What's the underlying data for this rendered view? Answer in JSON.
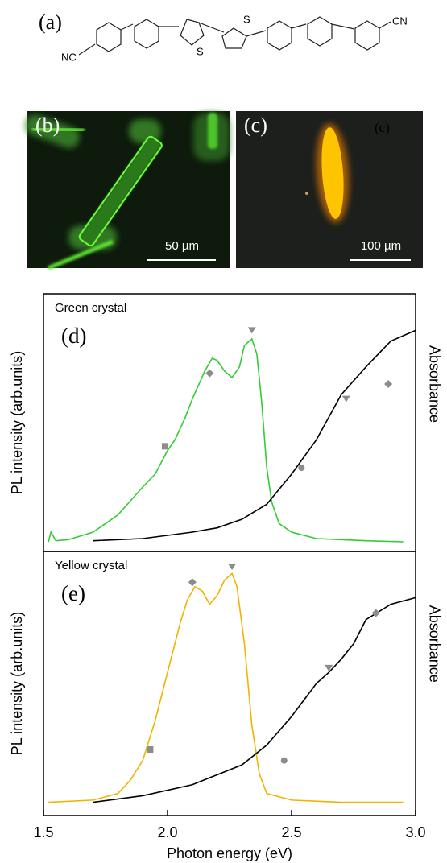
{
  "panel_a": {
    "label": "(a)",
    "left_group": "NC",
    "right_group": "CN",
    "sulfur_1": "S",
    "sulfur_2": "S"
  },
  "panel_b": {
    "label": "(b)",
    "scale_bar": "50 µm"
  },
  "panel_c": {
    "label": "(c)",
    "inset_label": "(c)",
    "scale_bar": "100 µm"
  },
  "chart_data": [
    {
      "type": "line",
      "annotation": "Green crystal",
      "panel_label": "(d)",
      "ylabel": "PL intensity (arb.units)",
      "y2label": "Absorbance",
      "xlim": [
        1.5,
        3.0
      ],
      "ylim": [
        0,
        1.2
      ],
      "y2lim": [
        0,
        1.2
      ],
      "series": [
        {
          "color": "#33cc33",
          "x": [
            1.52,
            1.53,
            1.55,
            1.6,
            1.7,
            1.8,
            1.9,
            1.95,
            2.0,
            2.03,
            2.07,
            2.1,
            2.15,
            2.18,
            2.2,
            2.23,
            2.26,
            2.29,
            2.31,
            2.34,
            2.36,
            2.38,
            2.4,
            2.42,
            2.45,
            2.5,
            2.6,
            2.7,
            2.8,
            2.95
          ],
          "values": [
            0.045,
            0.09,
            0.05,
            0.055,
            0.09,
            0.17,
            0.3,
            0.36,
            0.47,
            0.52,
            0.62,
            0.71,
            0.84,
            0.9,
            0.89,
            0.84,
            0.81,
            0.86,
            0.96,
            0.99,
            0.92,
            0.69,
            0.39,
            0.23,
            0.13,
            0.09,
            0.06,
            0.055,
            0.05,
            0.045
          ]
        },
        {
          "color": "#000000",
          "axis": "y2",
          "x": [
            1.7,
            1.9,
            2.1,
            2.2,
            2.3,
            2.4,
            2.5,
            2.6,
            2.7,
            2.8,
            2.9,
            3.0
          ],
          "values": [
            0.05,
            0.06,
            0.09,
            0.11,
            0.15,
            0.22,
            0.36,
            0.52,
            0.73,
            0.86,
            0.98,
            1.03
          ]
        }
      ],
      "markers": {
        "color": "#8c8c8c",
        "points": [
          {
            "shape": "square",
            "x": 1.99,
            "y": 0.49
          },
          {
            "shape": "diamond",
            "x": 2.17,
            "y": 0.83
          },
          {
            "shape": "triangle",
            "x": 2.34,
            "y": 1.03
          },
          {
            "shape": "circle",
            "x": 2.54,
            "y": 0.39
          },
          {
            "shape": "triangle",
            "x": 2.72,
            "y": 0.71
          },
          {
            "shape": "diamond",
            "x": 2.89,
            "y": 0.78
          }
        ]
      }
    },
    {
      "type": "line",
      "annotation": "Yellow crystal",
      "panel_label": "(e)",
      "ylabel": "PL intensity (arb.units)",
      "y2label": "Absorbance",
      "xlabel": "Photon energy (eV)",
      "xlim": [
        1.5,
        3.0
      ],
      "xticks": [
        1.5,
        {
          "value": 2.0,
          "label": "2.0"
        },
        2.5,
        {
          "value": 3.0,
          "label": "3.0"
        }
      ],
      "ylim": [
        0,
        1.2
      ],
      "y2lim": [
        0,
        1.2
      ],
      "series": [
        {
          "color": "#f0b400",
          "x": [
            1.52,
            1.7,
            1.8,
            1.85,
            1.9,
            1.95,
            2.0,
            2.05,
            2.08,
            2.11,
            2.14,
            2.17,
            2.2,
            2.23,
            2.26,
            2.28,
            2.31,
            2.34,
            2.37,
            2.4,
            2.5,
            2.7,
            2.95
          ],
          "values": [
            0.06,
            0.07,
            0.1,
            0.16,
            0.25,
            0.43,
            0.65,
            0.87,
            0.98,
            1.04,
            1.02,
            0.96,
            1.0,
            1.07,
            1.1,
            1.04,
            0.78,
            0.41,
            0.19,
            0.1,
            0.07,
            0.06,
            0.06
          ]
        },
        {
          "color": "#000000",
          "axis": "y2",
          "x": [
            1.7,
            1.9,
            2.1,
            2.3,
            2.4,
            2.5,
            2.6,
            2.65,
            2.7,
            2.75,
            2.8,
            2.9,
            3.0
          ],
          "values": [
            0.06,
            0.09,
            0.14,
            0.23,
            0.32,
            0.45,
            0.6,
            0.65,
            0.71,
            0.78,
            0.89,
            0.96,
            0.99
          ]
        }
      ],
      "markers": {
        "color": "#8c8c8c",
        "points": [
          {
            "shape": "square",
            "x": 1.93,
            "y": 0.3
          },
          {
            "shape": "diamond",
            "x": 2.1,
            "y": 1.06
          },
          {
            "shape": "triangle",
            "x": 2.26,
            "y": 1.13
          },
          {
            "shape": "circle",
            "x": 2.47,
            "y": 0.25
          },
          {
            "shape": "triangle",
            "x": 2.65,
            "y": 0.67
          },
          {
            "shape": "diamond",
            "x": 2.84,
            "y": 0.92
          }
        ]
      }
    }
  ]
}
